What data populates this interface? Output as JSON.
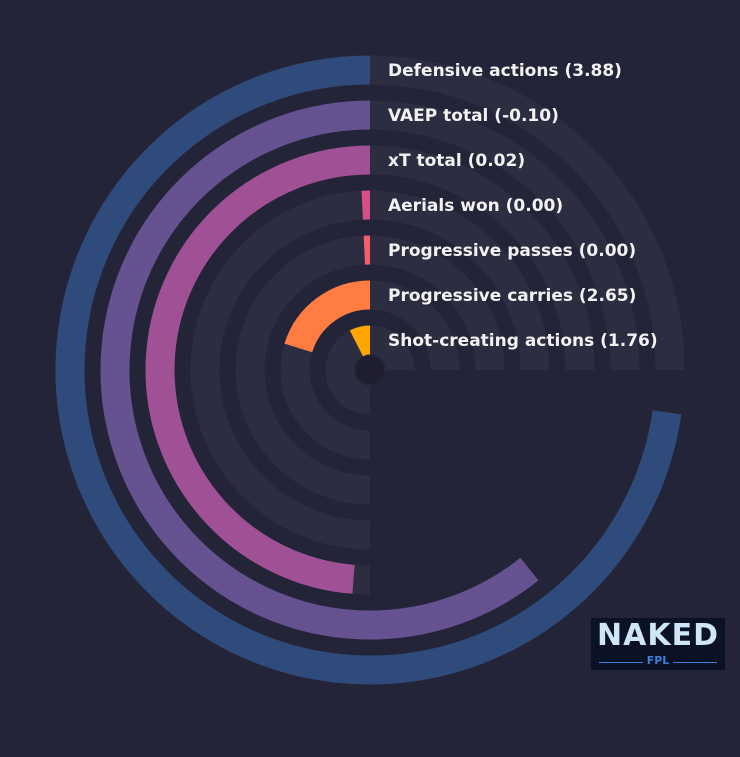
{
  "chart_data": {
    "type": "radial-bar",
    "full_scale": 4.0,
    "series": [
      {
        "metric": "Defensive actions",
        "label": "Defensive actions (3.88)",
        "value": 3.88,
        "color": "#2f4b7c"
      },
      {
        "metric": "VAEP total",
        "label": "VAEP total (-0.10)",
        "value": -0.1,
        "fill": 0.81,
        "color": "#665191"
      },
      {
        "metric": "xT total",
        "label": "xT total (0.02)",
        "value": 0.02,
        "fill": 0.65,
        "color": "#a05195"
      },
      {
        "metric": "Aerials won",
        "label": "Aerials won (0.00)",
        "value": 0.0,
        "fill": 0.01,
        "color": "#d45087"
      },
      {
        "metric": "Progressive passes",
        "label": "Progressive passes (0.00)",
        "value": 0.0,
        "fill": 0.01,
        "color": "#f95d6a"
      },
      {
        "metric": "Progressive carries",
        "label": "Progressive carries (2.65)",
        "value": 2.65,
        "fill": 0.27,
        "color": "#ff7c43"
      },
      {
        "metric": "Shot-creating actions",
        "label": "Shot-creating actions (1.76)",
        "value": 1.76,
        "fill": 0.1,
        "color": "#ffa600"
      }
    ],
    "track_color": "#2d2d42",
    "background": "#242438"
  },
  "logo": {
    "main": "NAKED",
    "sub": "FPL"
  }
}
